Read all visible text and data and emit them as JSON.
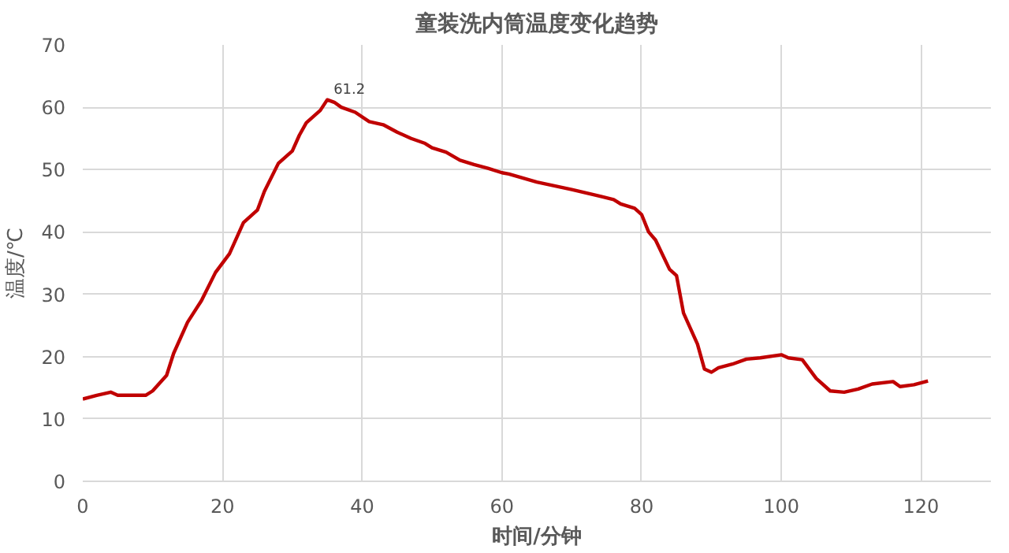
{
  "chart_data": {
    "type": "line",
    "title": "童装洗内筒温度变化趋势",
    "xlabel": "时间/分钟",
    "ylabel": "温度/℃",
    "x": [
      0,
      2,
      4,
      5,
      9,
      10,
      12,
      13,
      15,
      17,
      19,
      21,
      23,
      25,
      26,
      28,
      30,
      31,
      32,
      34,
      35,
      36,
      37,
      39,
      41,
      43,
      45,
      47,
      49,
      50,
      52,
      54,
      56,
      58,
      60,
      61,
      65,
      70,
      73,
      76,
      77,
      79,
      80,
      81,
      82,
      84,
      85,
      86,
      88,
      89,
      90,
      91,
      93,
      95,
      97,
      100,
      101,
      103,
      105,
      107,
      109,
      111,
      113,
      116,
      117,
      119,
      121
    ],
    "series": [
      {
        "color": "#c00000",
        "values": [
          13.2,
          13.8,
          14.3,
          13.8,
          13.8,
          14.5,
          17,
          20.5,
          25.5,
          29,
          33.5,
          36.5,
          41.5,
          43.5,
          46.5,
          51,
          53,
          55.5,
          57.5,
          59.5,
          61.2,
          60.8,
          60,
          59.2,
          57.7,
          57.2,
          56,
          55,
          54.2,
          53.5,
          52.8,
          51.5,
          50.8,
          50.2,
          49.5,
          49.3,
          48,
          46.8,
          46,
          45.2,
          44.5,
          43.8,
          42.8,
          40,
          38.7,
          34,
          33,
          27,
          22,
          18,
          17.5,
          18.2,
          18.8,
          19.6,
          19.8,
          20.3,
          19.8,
          19.5,
          16.5,
          14.5,
          14.3,
          14.8,
          15.6,
          16,
          15.2,
          15.5,
          16.1
        ]
      }
    ],
    "annotations": [
      {
        "text": "61.2",
        "x": 35,
        "y": 61.2
      }
    ],
    "xlim": [
      0,
      130
    ],
    "xticks": [
      0,
      20,
      40,
      60,
      80,
      100,
      120
    ],
    "ylim": [
      0,
      70
    ],
    "yticks": [
      0,
      10,
      20,
      30,
      40,
      50,
      60,
      70
    ],
    "grid": true,
    "marker": "none",
    "line_style": "solid"
  }
}
